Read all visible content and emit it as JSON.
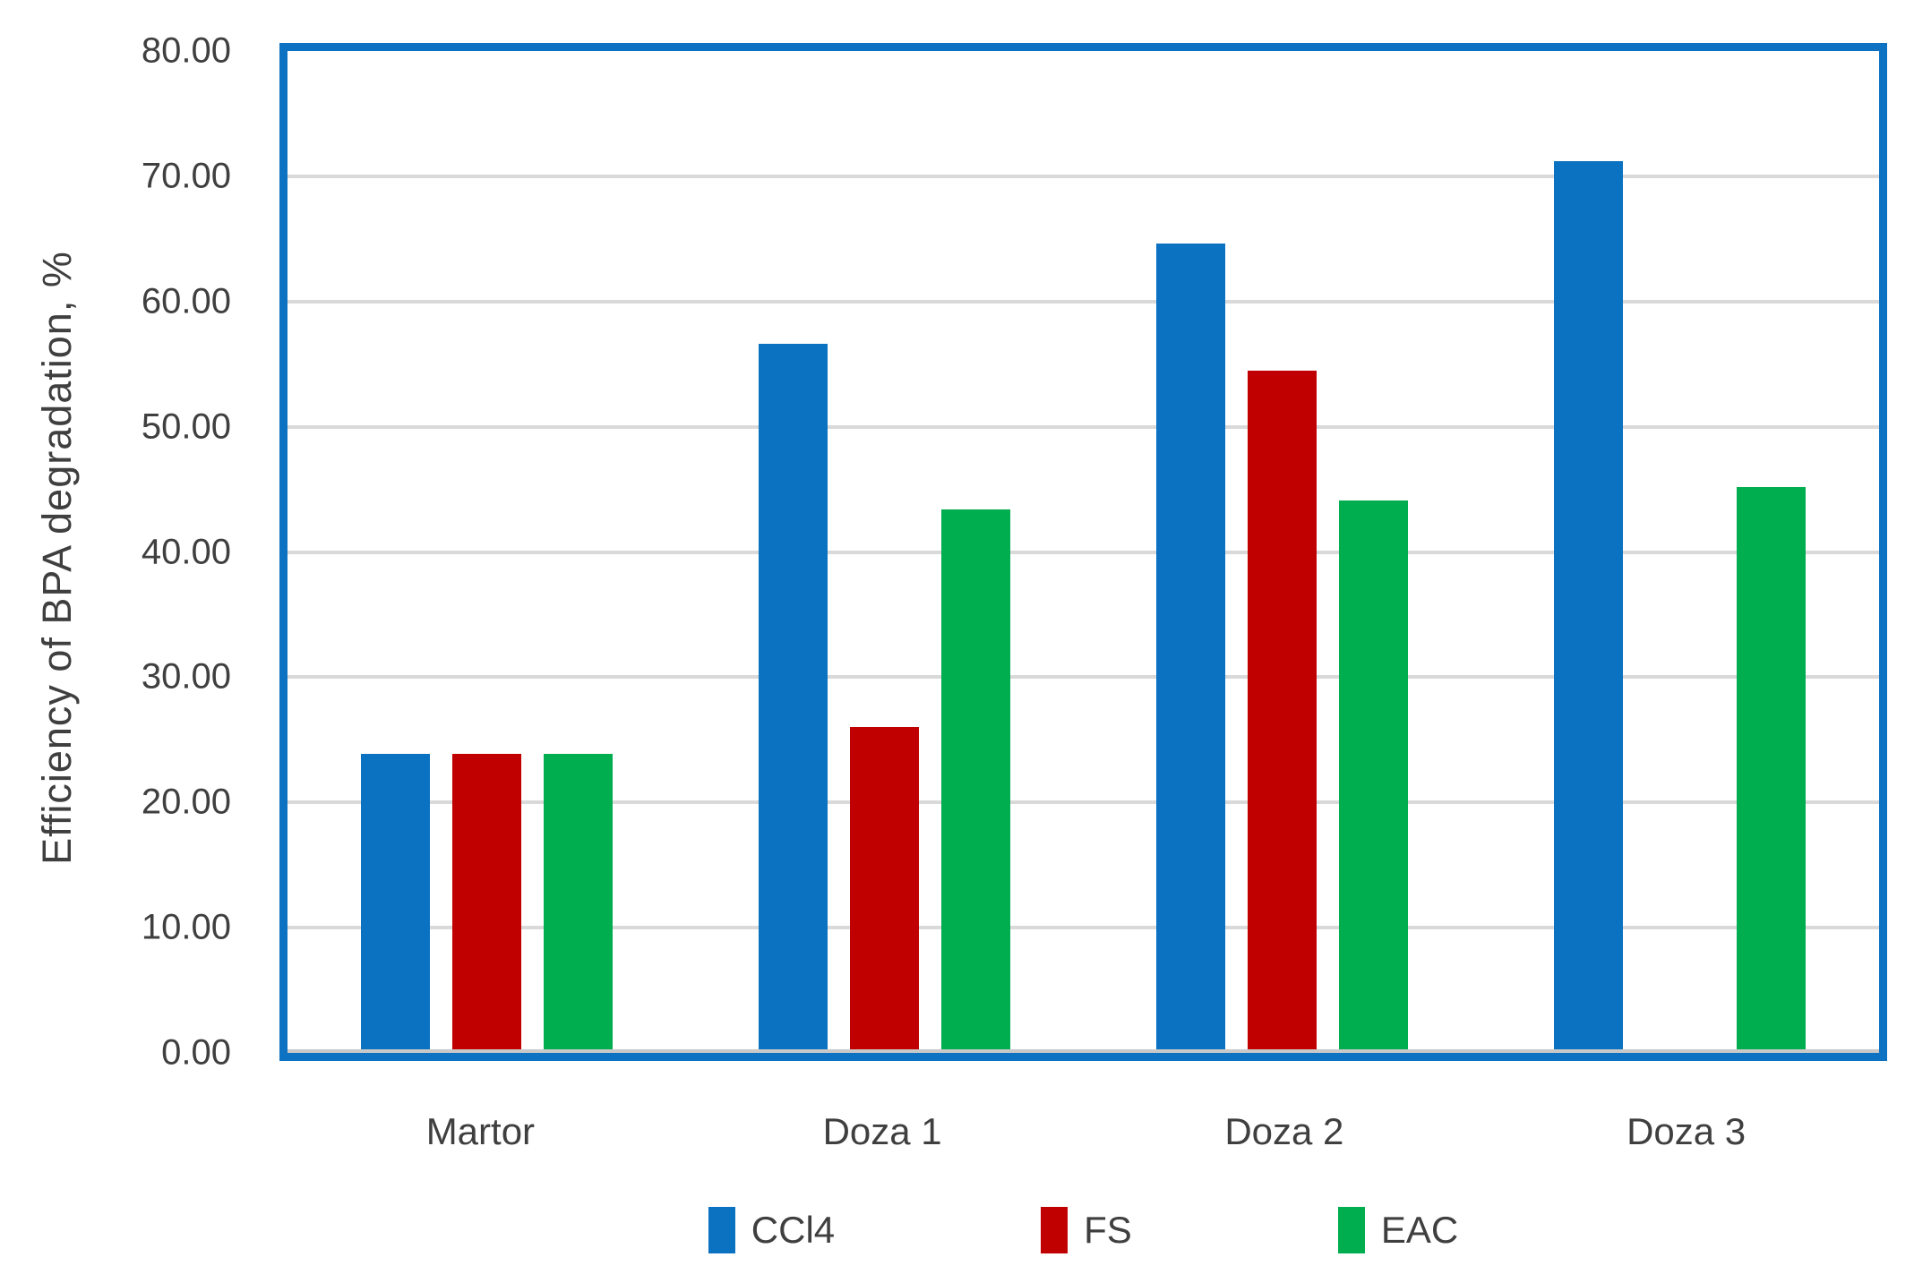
{
  "chart_data": {
    "type": "bar",
    "title": "",
    "ylabel": "Efficiency of BPA degradation, %",
    "xlabel": "",
    "categories": [
      "Martor",
      "Doza 1",
      "Doza 2",
      "Doza 3"
    ],
    "series": [
      {
        "name": "CCl4",
        "color": "#0b72c2",
        "values": [
          23.9,
          56.6,
          64.6,
          71.2
        ]
      },
      {
        "name": "FS",
        "color": "#c00000",
        "values": [
          23.9,
          26.0,
          54.5,
          null
        ]
      },
      {
        "name": "EAC",
        "color": "#00ae50",
        "values": [
          23.9,
          43.4,
          44.1,
          45.2
        ]
      }
    ],
    "ylim": [
      0,
      80
    ],
    "ytick_step": 10,
    "ytick_labels": [
      "0.00",
      "10.00",
      "20.00",
      "30.00",
      "40.00",
      "50.00",
      "60.00",
      "70.00",
      "80.00"
    ],
    "grid": true,
    "legend_position": "bottom"
  },
  "colors": {
    "plot_border": "#0e72c2",
    "gridline": "#d9d9d9",
    "axis_line": "#c9c9c9",
    "text": "#3f3f3f",
    "background": "#ffffff"
  }
}
